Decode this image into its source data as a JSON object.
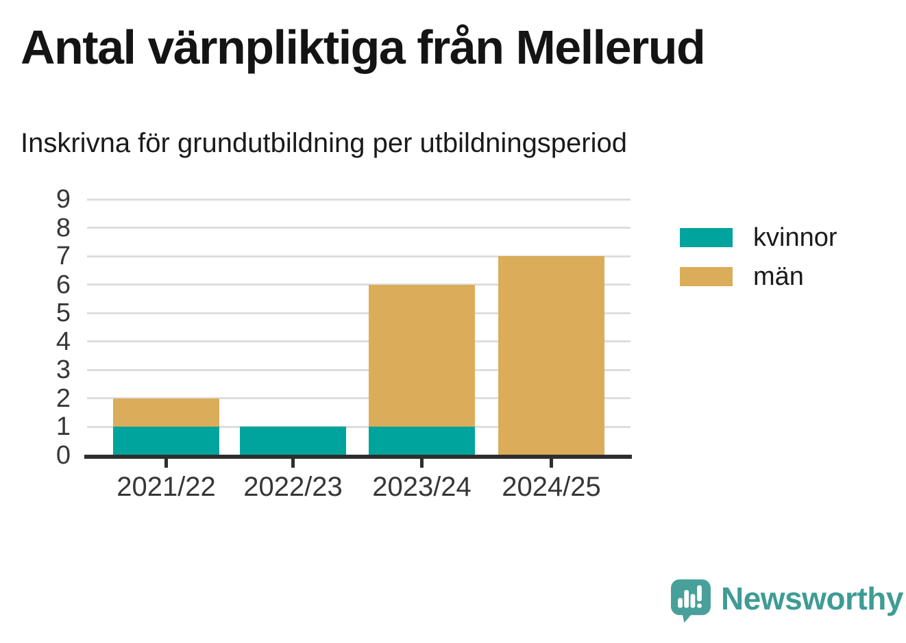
{
  "chart_data": {
    "type": "bar",
    "stacked": true,
    "title": "Antal värnpliktiga från Mellerud",
    "subtitle": "Inskrivna för grundutbildning per utbildningsperiod",
    "categories": [
      "2021/22",
      "2022/23",
      "2023/24",
      "2024/25"
    ],
    "series": [
      {
        "name": "kvinnor",
        "color": "#00a49c",
        "values": [
          1,
          1,
          1,
          0
        ]
      },
      {
        "name": "män",
        "color": "#dbac59",
        "values": [
          1,
          0,
          5,
          7
        ]
      }
    ],
    "totals": [
      2,
      1,
      6,
      7
    ],
    "ylim": [
      0,
      9
    ],
    "yticks": [
      0,
      1,
      2,
      3,
      4,
      5,
      6,
      7,
      8,
      9
    ],
    "xlabel": "",
    "ylabel": "",
    "grid": true,
    "legend_position": "right"
  },
  "colors": {
    "background": "#ffffff",
    "title_text": "#141414",
    "axis_text": "#363636",
    "gridline": "#dddddd",
    "axis_line": "#2e2e2e",
    "logo_teal": "#48a09a",
    "logo_text_teal": "#3e9c95"
  },
  "branding": {
    "logo_text": "Newsworthy",
    "logo_icon": "newsworthy-speech-bubble-chart-icon"
  }
}
